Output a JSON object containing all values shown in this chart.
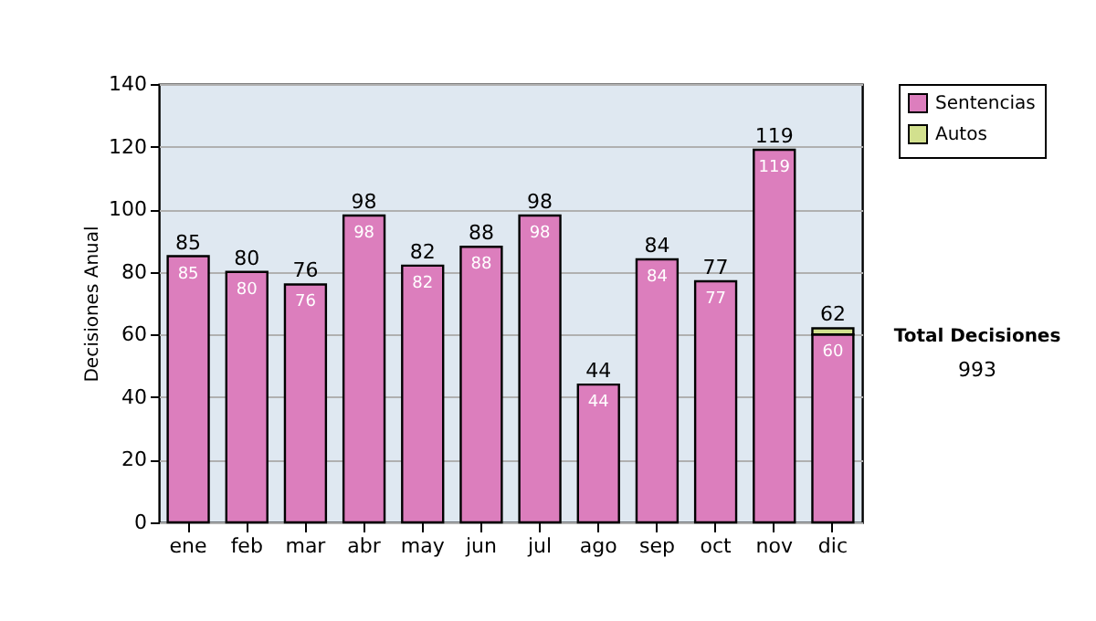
{
  "chart_data": {
    "type": "bar",
    "stacked": true,
    "ylabel": "Decisiones Anual",
    "categories": [
      "ene",
      "feb",
      "mar",
      "abr",
      "may",
      "jun",
      "jul",
      "ago",
      "sep",
      "oct",
      "nov",
      "dic"
    ],
    "series": [
      {
        "name": "Sentencias",
        "color": "#dc7ebd",
        "values": [
          85,
          80,
          76,
          98,
          82,
          88,
          98,
          44,
          84,
          77,
          119,
          60
        ],
        "value_labels": [
          "85",
          "80",
          "76",
          "98",
          "82",
          "88",
          "98",
          "44",
          "84",
          "77",
          "119",
          "60"
        ]
      },
      {
        "name": "Autos",
        "color": "#d2e08e",
        "values": [
          null,
          null,
          null,
          null,
          null,
          null,
          null,
          null,
          null,
          null,
          null,
          2
        ],
        "value_labels": [
          null,
          null,
          null,
          null,
          null,
          null,
          null,
          null,
          null,
          null,
          null,
          null
        ]
      }
    ],
    "totals": [
      "85",
      "80",
      "76",
      "98",
      "82",
      "88",
      "98",
      "44",
      "84",
      "77",
      "119",
      "62"
    ],
    "ylim": [
      0,
      140
    ],
    "yticks": [
      0,
      20,
      40,
      60,
      80,
      100,
      120,
      140
    ],
    "grid": "y",
    "legend": "right",
    "annotations": [
      "Total Decisiones",
      "993"
    ]
  }
}
